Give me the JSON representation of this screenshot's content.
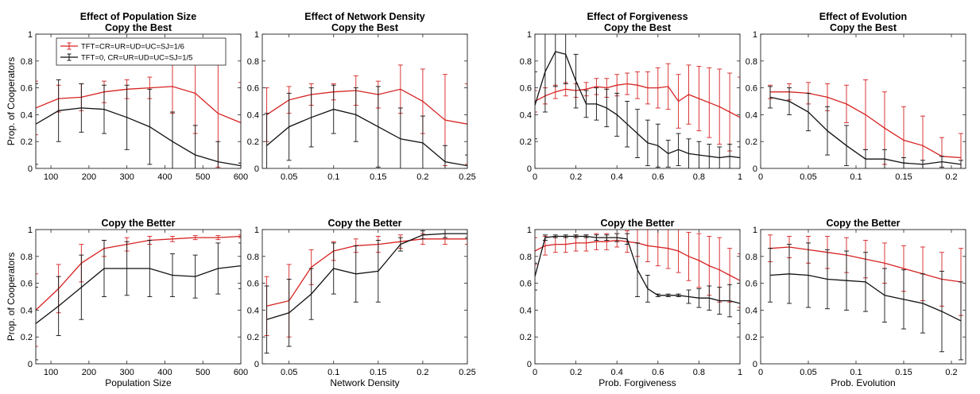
{
  "colors": {
    "red": "#d62222",
    "black": "#111111",
    "axis": "#222222"
  },
  "legend": {
    "placement": "top-left of first panel",
    "entries": [
      {
        "label": "TFT=CR=UR=UD=UC=SJ=1/6",
        "color": "#d62222"
      },
      {
        "label": "TFT=0, CR=UR=UD=UC=SJ=1/5",
        "color": "#111111"
      }
    ]
  },
  "chart_data": [
    {
      "type": "line",
      "row": 0,
      "col": 0,
      "title": [
        "Effect of Population Size",
        "Copy the Best"
      ],
      "ylabel": "Prop. of Cooperators",
      "xlabel": "",
      "xlim": [
        60,
        600
      ],
      "ylim": [
        0,
        1
      ],
      "xticks": [
        100,
        200,
        300,
        400,
        500,
        600
      ],
      "xtick_labels": [
        "100",
        "200",
        "300",
        "400",
        "500",
        "600"
      ],
      "yticks": [
        0,
        0.2,
        0.4,
        0.6,
        0.8,
        1
      ],
      "ytick_labels": [
        "0",
        "0.2",
        "0.4",
        "0.6",
        "0.8",
        "1"
      ],
      "x": [
        60,
        120,
        180,
        240,
        300,
        360,
        420,
        480,
        540,
        600
      ],
      "series": [
        {
          "name": "TFT=CR=UR=UD=UC=SJ=1/6",
          "color": "#d62222",
          "values": [
            0.45,
            0.52,
            0.53,
            0.57,
            0.59,
            0.6,
            0.61,
            0.56,
            0.41,
            0.34
          ],
          "err": [
            0.2,
            0.1,
            0.1,
            0.08,
            0.07,
            0.08,
            0.2,
            0.3,
            0.4,
            0.3
          ]
        },
        {
          "name": "TFT=0, CR=UR=UD=UC=SJ=1/5",
          "color": "#111111",
          "values": [
            0.33,
            0.43,
            0.45,
            0.44,
            0.38,
            0.31,
            0.2,
            0.1,
            0.05,
            0.02
          ],
          "err": [
            0.3,
            0.23,
            0.18,
            0.18,
            0.24,
            0.28,
            0.22,
            0.22,
            0.15,
            0.02
          ]
        }
      ]
    },
    {
      "type": "line",
      "row": 0,
      "col": 1,
      "title": [
        "Effect of Network Density",
        "Copy the Best"
      ],
      "ylabel": "",
      "xlabel": "",
      "xlim": [
        0.02,
        0.25
      ],
      "ylim": [
        0,
        1
      ],
      "xticks": [
        0.05,
        0.1,
        0.15,
        0.2,
        0.25
      ],
      "xtick_labels": [
        "0.05",
        "0.1",
        "0.15",
        "0.2",
        "0.25"
      ],
      "yticks": [
        0,
        0.2,
        0.4,
        0.6,
        0.8,
        1
      ],
      "ytick_labels": [
        "0",
        "0.2",
        "0.4",
        "0.6",
        "0.8",
        "1"
      ],
      "x": [
        0.025,
        0.05,
        0.075,
        0.1,
        0.125,
        0.15,
        0.175,
        0.2,
        0.225,
        0.25
      ],
      "series": [
        {
          "name": "TFT=CR=UR=UD=UC=SJ=1/6",
          "color": "#d62222",
          "values": [
            0.4,
            0.51,
            0.55,
            0.57,
            0.58,
            0.55,
            0.59,
            0.5,
            0.36,
            0.33
          ],
          "err": [
            0.2,
            0.1,
            0.08,
            0.06,
            0.11,
            0.1,
            0.18,
            0.24,
            0.34,
            0.3
          ]
        },
        {
          "name": "TFT=0, CR=UR=UD=UC=SJ=1/5",
          "color": "#111111",
          "values": [
            0.17,
            0.31,
            0.38,
            0.44,
            0.4,
            0.31,
            0.22,
            0.19,
            0.05,
            0.02
          ],
          "err": [
            0.24,
            0.25,
            0.22,
            0.18,
            0.2,
            0.3,
            0.23,
            0.2,
            0.12,
            0.08
          ]
        }
      ]
    },
    {
      "type": "line",
      "row": 0,
      "col": 2,
      "title": [
        "Effect of Forgiveness",
        "Copy the Best"
      ],
      "ylabel": "",
      "xlabel": "",
      "xlim": [
        0,
        1
      ],
      "ylim": [
        0,
        1
      ],
      "xticks": [
        0,
        0.2,
        0.4,
        0.6,
        0.8,
        1
      ],
      "xtick_labels": [
        "0",
        "0.2",
        "0.4",
        "0.6",
        "0.8",
        "1"
      ],
      "yticks": [
        0,
        0.2,
        0.4,
        0.6,
        0.8,
        1
      ],
      "ytick_labels": [
        "0",
        "0.2",
        "0.4",
        "0.6",
        "0.8",
        "1"
      ],
      "x": [
        0,
        0.05,
        0.1,
        0.15,
        0.2,
        0.25,
        0.3,
        0.35,
        0.4,
        0.45,
        0.5,
        0.55,
        0.6,
        0.65,
        0.7,
        0.75,
        0.8,
        0.85,
        0.9,
        0.95,
        1
      ],
      "series": [
        {
          "name": "TFT=CR=UR=UD=UC=SJ=1/6",
          "color": "#d62222",
          "values": [
            0.5,
            0.54,
            0.57,
            0.59,
            0.58,
            0.59,
            0.61,
            0.6,
            0.62,
            0.63,
            0.62,
            0.6,
            0.6,
            0.61,
            0.5,
            0.55,
            0.52,
            0.49,
            0.46,
            0.42,
            0.38
          ],
          "err": [
            0.08,
            0.06,
            0.05,
            0.05,
            0.05,
            0.05,
            0.06,
            0.07,
            0.08,
            0.08,
            0.1,
            0.12,
            0.15,
            0.17,
            0.2,
            0.22,
            0.24,
            0.26,
            0.28,
            0.29,
            0.3
          ]
        },
        {
          "name": "TFT=0, CR=UR=UD=UC=SJ=1/5",
          "color": "#111111",
          "values": [
            0.47,
            0.72,
            0.87,
            0.85,
            0.65,
            0.48,
            0.48,
            0.45,
            0.4,
            0.33,
            0.26,
            0.19,
            0.17,
            0.11,
            0.14,
            0.11,
            0.1,
            0.09,
            0.08,
            0.09,
            0.08
          ],
          "err": [
            0.25,
            0.3,
            0.26,
            0.22,
            0.2,
            0.1,
            0.12,
            0.14,
            0.16,
            0.17,
            0.18,
            0.17,
            0.16,
            0.1,
            0.12,
            0.11,
            0.1,
            0.09,
            0.08,
            0.09,
            0.08
          ]
        }
      ]
    },
    {
      "type": "line",
      "row": 0,
      "col": 3,
      "title": [
        "Effect of Evolution",
        "Copy the Best"
      ],
      "ylabel": "",
      "xlabel": "",
      "xlim": [
        0,
        0.215
      ],
      "ylim": [
        0,
        1
      ],
      "xticks": [
        0,
        0.05,
        0.1,
        0.15,
        0.2
      ],
      "xtick_labels": [
        "0",
        "0.05",
        "0.1",
        "0.15",
        "0.2"
      ],
      "yticks": [
        0,
        0.2,
        0.4,
        0.6,
        0.8,
        1
      ],
      "ytick_labels": [
        "0",
        "0.2",
        "0.4",
        "0.6",
        "0.8",
        "1"
      ],
      "x": [
        0.01,
        0.03,
        0.05,
        0.07,
        0.09,
        0.11,
        0.13,
        0.15,
        0.17,
        0.19,
        0.21
      ],
      "series": [
        {
          "name": "TFT=CR=UR=UD=UC=SJ=1/6",
          "color": "#d62222",
          "values": [
            0.57,
            0.57,
            0.56,
            0.53,
            0.48,
            0.4,
            0.3,
            0.21,
            0.17,
            0.09,
            0.08
          ],
          "err": [
            0.05,
            0.06,
            0.08,
            0.1,
            0.14,
            0.26,
            0.27,
            0.25,
            0.22,
            0.14,
            0.18
          ]
        },
        {
          "name": "TFT=0, CR=UR=UD=UC=SJ=1/5",
          "color": "#111111",
          "values": [
            0.53,
            0.5,
            0.42,
            0.28,
            0.17,
            0.07,
            0.07,
            0.04,
            0.03,
            0.05,
            0.03
          ],
          "err": [
            0.08,
            0.1,
            0.14,
            0.18,
            0.15,
            0.07,
            0.07,
            0.04,
            0.03,
            0.04,
            0.03
          ]
        }
      ]
    },
    {
      "type": "line",
      "row": 1,
      "col": 0,
      "title": [
        "Copy the Better"
      ],
      "ylabel": "Prop. of Cooperators",
      "xlabel": "Population Size",
      "xlim": [
        60,
        600
      ],
      "ylim": [
        0,
        1
      ],
      "xticks": [
        100,
        200,
        300,
        400,
        500,
        600
      ],
      "xtick_labels": [
        "100",
        "200",
        "300",
        "400",
        "500",
        "600"
      ],
      "yticks": [
        0,
        0.2,
        0.4,
        0.6,
        0.8,
        1
      ],
      "ytick_labels": [
        "0",
        "0.2",
        "0.4",
        "0.6",
        "0.8",
        "1"
      ],
      "x": [
        60,
        120,
        180,
        240,
        300,
        360,
        420,
        480,
        540,
        600
      ],
      "series": [
        {
          "name": "TFT=CR=UR=UD=UC=SJ=1/6",
          "color": "#d62222",
          "values": [
            0.4,
            0.56,
            0.75,
            0.86,
            0.89,
            0.92,
            0.93,
            0.94,
            0.94,
            0.95
          ],
          "err": [
            0.27,
            0.18,
            0.14,
            0.06,
            0.05,
            0.03,
            0.02,
            0.015,
            0.015,
            0.01
          ]
        },
        {
          "name": "TFT=0, CR=UR=UD=UC=SJ=1/5",
          "color": "#111111",
          "values": [
            0.3,
            0.43,
            0.57,
            0.71,
            0.71,
            0.71,
            0.66,
            0.65,
            0.71,
            0.73
          ],
          "err": [
            0.27,
            0.22,
            0.24,
            0.21,
            0.2,
            0.21,
            0.16,
            0.16,
            0.19,
            0.17
          ]
        }
      ]
    },
    {
      "type": "line",
      "row": 1,
      "col": 1,
      "title": [
        "Copy the Better"
      ],
      "ylabel": "",
      "xlabel": "Network Density",
      "xlim": [
        0.02,
        0.25
      ],
      "ylim": [
        0,
        1
      ],
      "xticks": [
        0.05,
        0.1,
        0.15,
        0.2,
        0.25
      ],
      "xtick_labels": [
        "0.05",
        "0.1",
        "0.15",
        "0.2",
        "0.25"
      ],
      "yticks": [
        0,
        0.2,
        0.4,
        0.6,
        0.8,
        1
      ],
      "ytick_labels": [
        "0",
        "0.2",
        "0.4",
        "0.6",
        "0.8",
        "1"
      ],
      "x": [
        0.025,
        0.05,
        0.075,
        0.1,
        0.125,
        0.15,
        0.175,
        0.2,
        0.225,
        0.25
      ],
      "series": [
        {
          "name": "TFT=CR=UR=UD=UC=SJ=1/6",
          "color": "#d62222",
          "values": [
            0.43,
            0.47,
            0.72,
            0.84,
            0.88,
            0.89,
            0.91,
            0.93,
            0.93,
            0.93
          ],
          "err": [
            0.22,
            0.27,
            0.13,
            0.07,
            0.05,
            0.06,
            0.05,
            0.04,
            0.04,
            0.04
          ]
        },
        {
          "name": "TFT=0, CR=UR=UD=UC=SJ=1/5",
          "color": "#111111",
          "values": [
            0.33,
            0.38,
            0.52,
            0.71,
            0.67,
            0.69,
            0.89,
            0.96,
            0.97,
            0.97
          ],
          "err": [
            0.25,
            0.25,
            0.19,
            0.19,
            0.21,
            0.23,
            0.05,
            0.03,
            0.03,
            0.03
          ]
        }
      ]
    },
    {
      "type": "line",
      "row": 1,
      "col": 2,
      "title": [
        "Copy the Better"
      ],
      "ylabel": "",
      "xlabel": "Prob. Forgiveness",
      "xlim": [
        0,
        1
      ],
      "ylim": [
        0,
        1
      ],
      "xticks": [
        0,
        0.2,
        0.4,
        0.6,
        0.8,
        1
      ],
      "xtick_labels": [
        "0",
        "0.2",
        "0.4",
        "0.6",
        "0.8",
        "1"
      ],
      "yticks": [
        0,
        0.2,
        0.4,
        0.6,
        0.8,
        1
      ],
      "ytick_labels": [
        "0",
        "0.2",
        "0.4",
        "0.6",
        "0.8",
        "1"
      ],
      "x": [
        0,
        0.05,
        0.1,
        0.15,
        0.2,
        0.25,
        0.3,
        0.35,
        0.4,
        0.45,
        0.5,
        0.55,
        0.6,
        0.65,
        0.7,
        0.75,
        0.8,
        0.85,
        0.9,
        0.95,
        1
      ],
      "series": [
        {
          "name": "TFT=CR=UR=UD=UC=SJ=1/6",
          "color": "#d62222",
          "values": [
            0.84,
            0.88,
            0.89,
            0.89,
            0.9,
            0.9,
            0.91,
            0.91,
            0.92,
            0.91,
            0.9,
            0.88,
            0.87,
            0.86,
            0.84,
            0.8,
            0.77,
            0.73,
            0.7,
            0.66,
            0.62
          ],
          "err": [
            0.1,
            0.07,
            0.06,
            0.06,
            0.06,
            0.06,
            0.06,
            0.06,
            0.05,
            0.08,
            0.1,
            0.12,
            0.14,
            0.15,
            0.16,
            0.18,
            0.2,
            0.22,
            0.24,
            0.2,
            0.2
          ]
        },
        {
          "name": "TFT=0, CR=UR=UD=UC=SJ=1/5",
          "color": "#111111",
          "values": [
            0.65,
            0.94,
            0.95,
            0.95,
            0.95,
            0.95,
            0.94,
            0.94,
            0.94,
            0.93,
            0.7,
            0.56,
            0.51,
            0.51,
            0.51,
            0.5,
            0.49,
            0.49,
            0.47,
            0.47,
            0.45
          ],
          "err": [
            0.1,
            0.02,
            0.01,
            0.01,
            0.01,
            0.01,
            0.02,
            0.02,
            0.03,
            0.04,
            0.2,
            0.1,
            0.01,
            0.01,
            0.01,
            0.05,
            0.07,
            0.09,
            0.1,
            0.12,
            0.15
          ]
        }
      ]
    },
    {
      "type": "line",
      "row": 1,
      "col": 3,
      "title": [
        "Copy the Better"
      ],
      "ylabel": "",
      "xlabel": "Prob. Evolution",
      "xlim": [
        0,
        0.215
      ],
      "ylim": [
        0,
        1
      ],
      "xticks": [
        0,
        0.05,
        0.1,
        0.15,
        0.2
      ],
      "xtick_labels": [
        "0",
        "0.05",
        "0.1",
        "0.15",
        "0.2"
      ],
      "yticks": [
        0,
        0.2,
        0.4,
        0.6,
        0.8,
        1
      ],
      "ytick_labels": [
        "0",
        "0.2",
        "0.4",
        "0.6",
        "0.8",
        "1"
      ],
      "x": [
        0.01,
        0.03,
        0.05,
        0.07,
        0.09,
        0.11,
        0.13,
        0.15,
        0.17,
        0.19,
        0.21
      ],
      "series": [
        {
          "name": "TFT=CR=UR=UD=UC=SJ=1/6",
          "color": "#d62222",
          "values": [
            0.86,
            0.87,
            0.85,
            0.83,
            0.81,
            0.78,
            0.75,
            0.71,
            0.67,
            0.63,
            0.61
          ],
          "err": [
            0.1,
            0.08,
            0.1,
            0.12,
            0.13,
            0.14,
            0.15,
            0.17,
            0.2,
            0.2,
            0.25
          ]
        },
        {
          "name": "TFT=0, CR=UR=UD=UC=SJ=1/5",
          "color": "#111111",
          "values": [
            0.66,
            0.67,
            0.66,
            0.63,
            0.62,
            0.61,
            0.51,
            0.48,
            0.45,
            0.39,
            0.32
          ],
          "err": [
            0.2,
            0.22,
            0.24,
            0.22,
            0.22,
            0.22,
            0.2,
            0.22,
            0.22,
            0.3,
            0.29
          ]
        }
      ]
    }
  ]
}
